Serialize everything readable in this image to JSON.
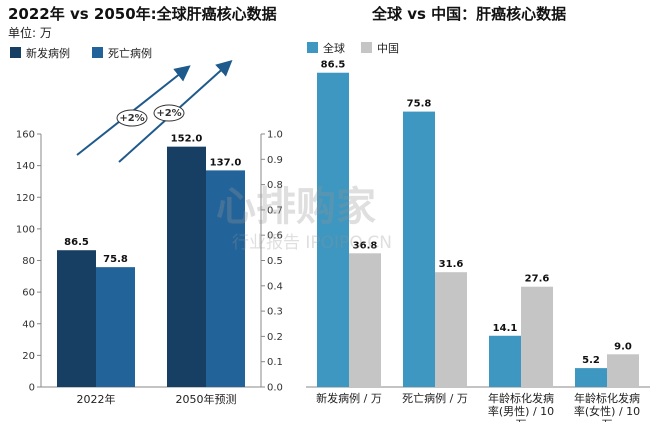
{
  "chart_data": [
    {
      "type": "bar",
      "title": "2022年 vs 2050年:全球肝癌核心数据",
      "subtitle": "单位: 万",
      "categories": [
        "2022年",
        "2050年预测"
      ],
      "series": [
        {
          "name": "新发病例",
          "values": [
            86.5,
            152.0
          ],
          "labels": [
            "86.5",
            "152.0"
          ],
          "color": "#173e63"
        },
        {
          "name": "死亡病例",
          "values": [
            75.8,
            137.0
          ],
          "labels": [
            "75.8",
            "137.0"
          ],
          "color": "#22649a"
        }
      ],
      "ylim": [
        0,
        160
      ],
      "yticks": [
        "0",
        "20",
        "40",
        "60",
        "80",
        "100",
        "120",
        "140",
        "160"
      ],
      "y2ticks": [
        "0.0",
        "0.1",
        "0.2",
        "0.3",
        "0.4",
        "0.5",
        "0.6",
        "0.7",
        "0.8",
        "0.9",
        "1.0"
      ],
      "annotations": [
        "+2%",
        "+2%"
      ],
      "legend_position": "top-left",
      "grid": false
    },
    {
      "type": "bar",
      "title": "全球 vs 中国：肝癌核心数据",
      "categories": [
        "新发病例 / 万",
        "死亡病例 / 万",
        "年龄标化发病率(男性) / 10万",
        "年龄标化发病率(女性) / 10万"
      ],
      "category_lines": [
        [
          "新发病例 / 万"
        ],
        [
          "死亡病例 / 万"
        ],
        [
          "年龄标化发病",
          "率(男性) / 10",
          "万"
        ],
        [
          "年龄标化发病",
          "率(女性) / 10",
          "万"
        ]
      ],
      "series": [
        {
          "name": "全球",
          "values": [
            86.5,
            75.8,
            14.1,
            5.2
          ],
          "labels": [
            "86.5",
            "75.8",
            "14.1",
            "5.2"
          ],
          "color": "#3d97c1"
        },
        {
          "name": "中国",
          "values": [
            36.8,
            31.6,
            27.6,
            9.0
          ],
          "labels": [
            "36.8",
            "31.6",
            "27.6",
            "9.0"
          ],
          "color": "#c5c5c5"
        }
      ],
      "ylim": [
        0,
        90
      ],
      "legend_position": "top-left",
      "grid": false
    }
  ],
  "watermark": {
    "main": "心排购家",
    "sub": "行业报告 IPOIPO.CN"
  }
}
